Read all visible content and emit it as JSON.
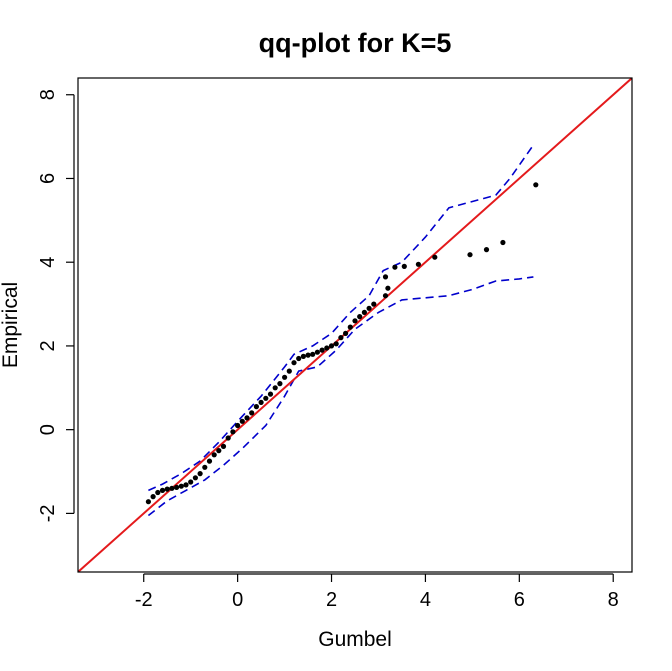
{
  "chart_data": {
    "type": "scatter",
    "title": "qq-plot for K=5",
    "xlabel": "Gumbel",
    "ylabel": "Empirical",
    "xlim": [
      -3.4,
      8.4
    ],
    "ylim": [
      -3.4,
      8.4
    ],
    "x_ticks": [
      -2,
      0,
      2,
      4,
      6,
      8
    ],
    "y_ticks": [
      -2,
      0,
      2,
      4,
      6,
      8
    ],
    "grid": false,
    "legend": "none",
    "points": [
      [
        -1.9,
        -1.72
      ],
      [
        -1.8,
        -1.6
      ],
      [
        -1.7,
        -1.5
      ],
      [
        -1.6,
        -1.45
      ],
      [
        -1.5,
        -1.42
      ],
      [
        -1.4,
        -1.4
      ],
      [
        -1.3,
        -1.38
      ],
      [
        -1.2,
        -1.35
      ],
      [
        -1.1,
        -1.32
      ],
      [
        -1.0,
        -1.25
      ],
      [
        -0.9,
        -1.15
      ],
      [
        -0.8,
        -1.05
      ],
      [
        -0.7,
        -0.9
      ],
      [
        -0.6,
        -0.75
      ],
      [
        -0.5,
        -0.6
      ],
      [
        -0.4,
        -0.5
      ],
      [
        -0.3,
        -0.4
      ],
      [
        -0.2,
        -0.2
      ],
      [
        -0.1,
        -0.05
      ],
      [
        0.0,
        0.1
      ],
      [
        0.1,
        0.2
      ],
      [
        0.2,
        0.28
      ],
      [
        0.3,
        0.4
      ],
      [
        0.4,
        0.55
      ],
      [
        0.5,
        0.65
      ],
      [
        0.6,
        0.75
      ],
      [
        0.7,
        0.85
      ],
      [
        0.8,
        1.0
      ],
      [
        0.9,
        1.1
      ],
      [
        1.0,
        1.25
      ],
      [
        1.1,
        1.4
      ],
      [
        1.2,
        1.6
      ],
      [
        1.3,
        1.7
      ],
      [
        1.4,
        1.75
      ],
      [
        1.5,
        1.78
      ],
      [
        1.6,
        1.8
      ],
      [
        1.7,
        1.85
      ],
      [
        1.8,
        1.9
      ],
      [
        1.9,
        1.95
      ],
      [
        2.0,
        2.0
      ],
      [
        2.1,
        2.05
      ],
      [
        2.2,
        2.2
      ],
      [
        2.3,
        2.3
      ],
      [
        2.4,
        2.45
      ],
      [
        2.5,
        2.6
      ],
      [
        2.6,
        2.7
      ],
      [
        2.7,
        2.8
      ],
      [
        2.8,
        2.9
      ],
      [
        2.9,
        3.0
      ],
      [
        3.15,
        3.2
      ],
      [
        3.2,
        3.38
      ],
      [
        3.15,
        3.65
      ],
      [
        3.35,
        3.88
      ],
      [
        3.55,
        3.9
      ],
      [
        3.85,
        3.95
      ],
      [
        4.2,
        4.12
      ],
      [
        4.95,
        4.18
      ],
      [
        5.3,
        4.3
      ],
      [
        5.65,
        4.47
      ],
      [
        6.35,
        5.85
      ]
    ],
    "reference_line": {
      "name": "y = x",
      "from": [
        -3.4,
        -3.4
      ],
      "to": [
        8.4,
        8.4
      ],
      "color": "#e41a1c"
    },
    "upper_band": {
      "color": "#0000cc",
      "x": [
        -1.9,
        -1.6,
        -1.2,
        -0.8,
        -0.4,
        0.0,
        0.5,
        1.0,
        1.2,
        1.6,
        2.0,
        2.4,
        2.8,
        3.1,
        3.5,
        4.0,
        4.5,
        5.0,
        5.5,
        5.8,
        6.3
      ],
      "y": [
        -1.45,
        -1.3,
        -1.05,
        -0.75,
        -0.3,
        0.2,
        0.8,
        1.5,
        1.8,
        2.0,
        2.3,
        2.8,
        3.2,
        3.8,
        4.0,
        4.6,
        5.3,
        5.45,
        5.6,
        6.0,
        6.8
      ]
    },
    "lower_band": {
      "color": "#0000cc",
      "x": [
        -1.9,
        -1.5,
        -1.1,
        -0.7,
        -0.3,
        0.1,
        0.6,
        1.0,
        1.3,
        1.7,
        2.1,
        2.5,
        3.0,
        3.5,
        4.0,
        4.5,
        5.0,
        5.5,
        6.0,
        6.3
      ],
      "y": [
        -2.05,
        -1.7,
        -1.45,
        -1.2,
        -0.85,
        -0.45,
        0.1,
        0.8,
        1.4,
        1.5,
        1.9,
        2.4,
        2.8,
        3.1,
        3.15,
        3.2,
        3.35,
        3.55,
        3.6,
        3.65
      ]
    }
  }
}
